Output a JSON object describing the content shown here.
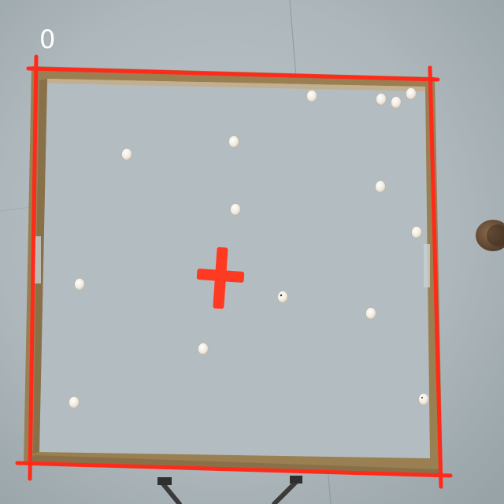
{
  "overlay": {
    "frame_counter": "0"
  },
  "colors": {
    "floor": "#a9b3b7",
    "arena_wall": "#9a7f52",
    "annotation": "#ff2a1a",
    "ball": "#f2eee6",
    "cross_marker": "#ff3a22",
    "shoe": "#6b5139"
  }
}
